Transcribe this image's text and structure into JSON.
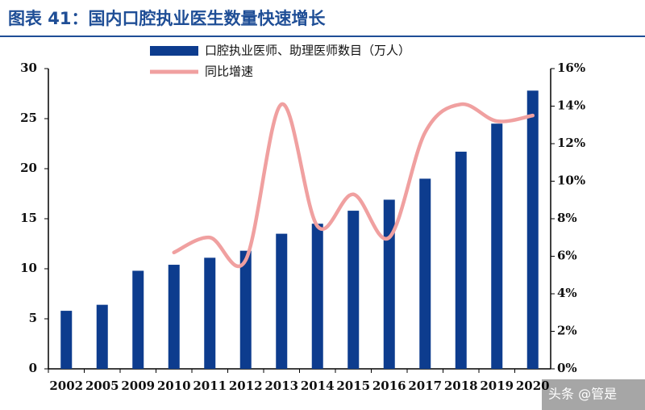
{
  "chart_data": {
    "type": "bar-line",
    "title": "图表 41：国内口腔执业医生数量快速增长",
    "watermark": "头条 @管是",
    "categories": [
      "2002",
      "2005",
      "2009",
      "2010",
      "2011",
      "2012",
      "2013",
      "2014",
      "2015",
      "2016",
      "2017",
      "2018",
      "2019",
      "2020"
    ],
    "series": [
      {
        "name": "口腔执业医师、助理医师数目（万人）",
        "type": "bar",
        "color": "#0d3c8e",
        "values": [
          5.8,
          6.4,
          9.8,
          10.4,
          11.1,
          11.8,
          13.5,
          14.5,
          15.8,
          16.9,
          19.0,
          21.7,
          24.5,
          27.8
        ]
      },
      {
        "name": "同比增速",
        "type": "line",
        "axis": "y2",
        "color": "#f0a0a0",
        "values": [
          null,
          null,
          null,
          6.2,
          7.0,
          5.8,
          14.1,
          7.6,
          9.3,
          7.0,
          12.6,
          14.1,
          13.2,
          13.5
        ]
      }
    ],
    "ylim": [
      0,
      30
    ],
    "yticks": [
      0,
      5,
      10,
      15,
      20,
      25,
      30
    ],
    "y2lim": [
      0,
      16
    ],
    "y2ticks": [
      {
        "value": 0,
        "label": "0%"
      },
      {
        "value": 2,
        "label": "2%"
      },
      {
        "value": 4,
        "label": "4%"
      },
      {
        "value": 6,
        "label": "6%"
      },
      {
        "value": 8,
        "label": "8%"
      },
      {
        "value": 10,
        "label": "10%"
      },
      {
        "value": 12,
        "label": "12%"
      },
      {
        "value": 14,
        "label": "14%"
      },
      {
        "value": 16,
        "label": "16%"
      }
    ]
  }
}
